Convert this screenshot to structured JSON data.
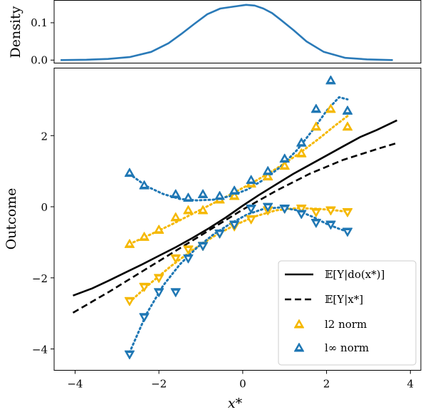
{
  "colors": {
    "l2": "#F5B800",
    "linf": "#1F77B4",
    "density": "#2A7AB8",
    "line": "#000000"
  },
  "chart_data": [
    {
      "type": "line",
      "ylabel": "Density",
      "xlim": [
        -4.25,
        4.25
      ],
      "ylim": [
        -0.008,
        0.16
      ],
      "yticks": [
        {
          "value": 0.0,
          "label": "0.0"
        },
        {
          "value": 0.1,
          "label": "0.1"
        }
      ],
      "series": [
        {
          "x": [
            -4.1,
            -3.5,
            -3.0,
            -2.5,
            -2.0,
            -1.6,
            -1.3,
            -1.0,
            -0.7,
            -0.4,
            -0.1,
            0.2,
            0.4,
            0.6,
            0.8,
            1.0,
            1.3,
            1.6,
            2.0,
            2.5,
            3.0,
            3.6
          ],
          "y": [
            0.0,
            0.001,
            0.003,
            0.008,
            0.022,
            0.045,
            0.07,
            0.097,
            0.123,
            0.138,
            0.143,
            0.148,
            0.146,
            0.138,
            0.126,
            0.108,
            0.08,
            0.05,
            0.022,
            0.006,
            0.002,
            0.0
          ]
        }
      ]
    },
    {
      "type": "line",
      "xlabel": "x*",
      "ylabel": "Outcome",
      "xlim": [
        -4.5,
        4.25
      ],
      "ylim": [
        -4.6,
        3.9
      ],
      "xticks": [
        {
          "value": -4,
          "label": "−4"
        },
        {
          "value": -2,
          "label": "−2"
        },
        {
          "value": 0,
          "label": "0"
        },
        {
          "value": 2,
          "label": "2"
        },
        {
          "value": 4,
          "label": "4"
        }
      ],
      "yticks": [
        {
          "value": -4,
          "label": "−4"
        },
        {
          "value": -2,
          "label": "−2"
        },
        {
          "value": 0,
          "label": "0"
        },
        {
          "value": 2,
          "label": "2"
        }
      ],
      "legend": "bottom-right",
      "series": [
        {
          "name": "𝔼[Y|do(x*)]",
          "style": "solid",
          "x": [
            -4.05,
            -3.6,
            -3.2,
            -2.8,
            -2.4,
            -2.0,
            -1.6,
            -1.2,
            -0.8,
            -0.4,
            0.0,
            0.4,
            0.8,
            1.2,
            1.6,
            2.0,
            2.4,
            2.8,
            3.2,
            3.68
          ],
          "y": [
            -2.5,
            -2.3,
            -2.08,
            -1.85,
            -1.62,
            -1.38,
            -1.14,
            -0.88,
            -0.6,
            -0.3,
            0.03,
            0.34,
            0.63,
            0.92,
            1.18,
            1.44,
            1.7,
            1.96,
            2.16,
            2.43
          ]
        },
        {
          "name": "𝔼[Y|x*]",
          "style": "dashed",
          "x": [
            -4.05,
            -3.2,
            -2.4,
            -1.6,
            -0.8,
            0.0,
            0.8,
            1.6,
            2.4,
            3.2,
            3.7
          ],
          "y": [
            -2.98,
            -2.4,
            -1.82,
            -1.24,
            -0.66,
            -0.08,
            0.45,
            0.93,
            1.32,
            1.62,
            1.8
          ]
        },
        {
          "name": "l2 norm",
          "marker": "triangle",
          "upper": {
            "x": [
              -2.7,
              -2.35,
              -2.0,
              -1.6,
              -1.3,
              -0.95,
              -0.55,
              -0.2,
              0.2,
              0.6,
              1.0,
              1.4,
              1.75,
              2.1,
              2.5
            ],
            "y": [
              -1.05,
              -0.85,
              -0.65,
              -0.3,
              -0.1,
              -0.1,
              0.2,
              0.3,
              0.65,
              0.85,
              1.15,
              1.5,
              2.25,
              2.75,
              2.25
            ]
          },
          "lower": {
            "x": [
              -2.7,
              -2.35,
              -2.0,
              -1.6,
              -1.3,
              -0.95,
              -0.55,
              -0.2,
              0.2,
              0.6,
              1.0,
              1.4,
              1.75,
              2.1,
              2.5
            ],
            "y": [
              -2.65,
              -2.25,
              -2.0,
              -1.45,
              -1.2,
              -1.1,
              -0.75,
              -0.55,
              -0.35,
              -0.1,
              -0.05,
              -0.05,
              -0.15,
              -0.1,
              -0.15
            ]
          },
          "upper_fit": {
            "x": [
              -2.7,
              -2.2,
              -1.7,
              -1.2,
              -0.7,
              -0.2,
              0.3,
              0.8,
              1.3,
              1.8,
              2.2,
              2.5
            ],
            "y": [
              -1.05,
              -0.78,
              -0.5,
              -0.2,
              0.1,
              0.4,
              0.72,
              1.07,
              1.46,
              1.9,
              2.28,
              2.55
            ]
          },
          "lower_fit": {
            "x": [
              -2.7,
              -2.2,
              -1.7,
              -1.2,
              -0.7,
              -0.2,
              0.3,
              0.8,
              1.3,
              1.8,
              2.2,
              2.5
            ],
            "y": [
              -2.68,
              -2.15,
              -1.66,
              -1.22,
              -0.84,
              -0.52,
              -0.27,
              -0.1,
              -0.04,
              -0.06,
              -0.1,
              -0.14
            ]
          }
        },
        {
          "name": "l∞ norm",
          "marker": "triangle",
          "upper": {
            "x": [
              -2.7,
              -2.35,
              -1.6,
              -1.3,
              -0.95,
              -0.55,
              -0.2,
              0.2,
              0.6,
              1.0,
              1.4,
              1.75,
              2.1,
              2.5
            ],
            "y": [
              0.95,
              0.6,
              0.35,
              0.25,
              0.35,
              0.3,
              0.45,
              0.75,
              1.0,
              1.35,
              1.8,
              2.75,
              3.55,
              2.7
            ]
          },
          "lower": {
            "x": [
              -2.7,
              -2.35,
              -2.0,
              -1.6,
              -1.3,
              -0.95,
              -0.55,
              -0.2,
              0.2,
              0.6,
              1.0,
              1.4,
              1.75,
              2.1,
              2.5
            ],
            "y": [
              -4.15,
              -3.1,
              -2.4,
              -2.4,
              -1.45,
              -1.1,
              -0.75,
              -0.5,
              -0.05,
              0.0,
              -0.05,
              -0.2,
              -0.45,
              -0.5,
              -0.7
            ]
          },
          "upper_fit": {
            "x": [
              -2.7,
              -2.3,
              -1.9,
              -1.5,
              -1.1,
              -0.7,
              -0.3,
              0.1,
              0.5,
              0.9,
              1.3,
              1.7,
              2.0,
              2.3,
              2.5
            ],
            "y": [
              0.92,
              0.58,
              0.36,
              0.22,
              0.18,
              0.2,
              0.3,
              0.48,
              0.76,
              1.12,
              1.6,
              2.2,
              2.7,
              3.08,
              3.02
            ]
          },
          "lower_fit": {
            "x": [
              -2.7,
              -2.3,
              -1.9,
              -1.5,
              -1.1,
              -0.7,
              -0.3,
              0.1,
              0.5,
              0.9,
              1.3,
              1.7,
              2.0,
              2.3,
              2.5
            ],
            "y": [
              -4.1,
              -3.02,
              -2.22,
              -1.62,
              -1.16,
              -0.78,
              -0.48,
              -0.22,
              -0.06,
              -0.02,
              -0.1,
              -0.3,
              -0.48,
              -0.62,
              -0.7
            ]
          }
        }
      ]
    }
  ]
}
